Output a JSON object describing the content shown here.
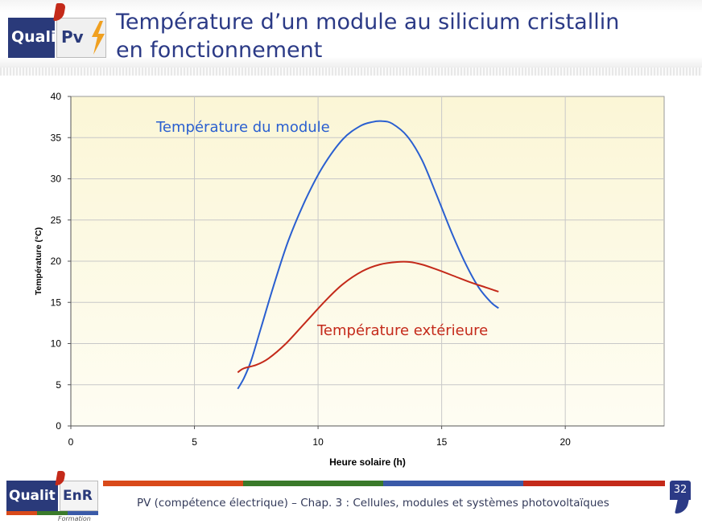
{
  "slide": {
    "title_line1": "Température d’un module au silicium cristallin",
    "title_line2": "en fonctionnement",
    "page_number": "32",
    "footer": "PV (compétence électrique) – Chap. 3 : Cellules, modules et systèmes photovoltaïques"
  },
  "logos": {
    "top_left": "Quali",
    "top_right": "Pv",
    "bottom_left": "Qualit",
    "bottom_right": "EnR",
    "bottom_sub": "Formation"
  },
  "colors": {
    "title": "#2b3a86",
    "module_series": "#2a5fd0",
    "ambient_series": "#c42a1a",
    "plot_bg_top": "#fbf6d6",
    "plot_bg_bottom": "#fefdf3",
    "footer_bars": [
      "#d94a1a",
      "#3a7a2a",
      "#3a5aa8",
      "#c42a1a"
    ]
  },
  "chart_data": {
    "type": "line",
    "title": "",
    "xlabel": "Heure solaire (h)",
    "ylabel": "Température (°C)",
    "xlim": [
      0,
      24
    ],
    "ylim": [
      0,
      40
    ],
    "xticks": [
      0,
      5,
      10,
      15,
      20
    ],
    "yticks": [
      0,
      5,
      10,
      15,
      20,
      25,
      30,
      35,
      40
    ],
    "grid": true,
    "series": [
      {
        "name": "Température du module",
        "x": [
          6.75,
          7.0,
          7.3,
          7.7,
          8.2,
          8.8,
          9.5,
          10.2,
          11.0,
          11.7,
          12.2,
          12.6,
          13.0,
          13.6,
          14.2,
          14.8,
          15.4,
          16.0,
          16.5,
          17.0,
          17.3
        ],
        "y": [
          4.5,
          5.8,
          8.0,
          12.0,
          17.0,
          22.5,
          27.5,
          31.5,
          34.8,
          36.4,
          36.9,
          37.0,
          36.7,
          35.2,
          32.3,
          28.0,
          23.5,
          19.5,
          16.8,
          15.0,
          14.3
        ]
      },
      {
        "name": "Température extérieure",
        "x": [
          6.75,
          7.0,
          7.5,
          8.0,
          8.7,
          9.5,
          10.3,
          11.0,
          11.8,
          12.5,
          13.2,
          13.7,
          14.2,
          14.8,
          15.5,
          16.2,
          16.8,
          17.3
        ],
        "y": [
          6.5,
          7.0,
          7.4,
          8.2,
          10.0,
          12.6,
          15.2,
          17.2,
          18.8,
          19.6,
          19.9,
          19.9,
          19.6,
          19.0,
          18.2,
          17.4,
          16.8,
          16.3
        ]
      }
    ]
  }
}
